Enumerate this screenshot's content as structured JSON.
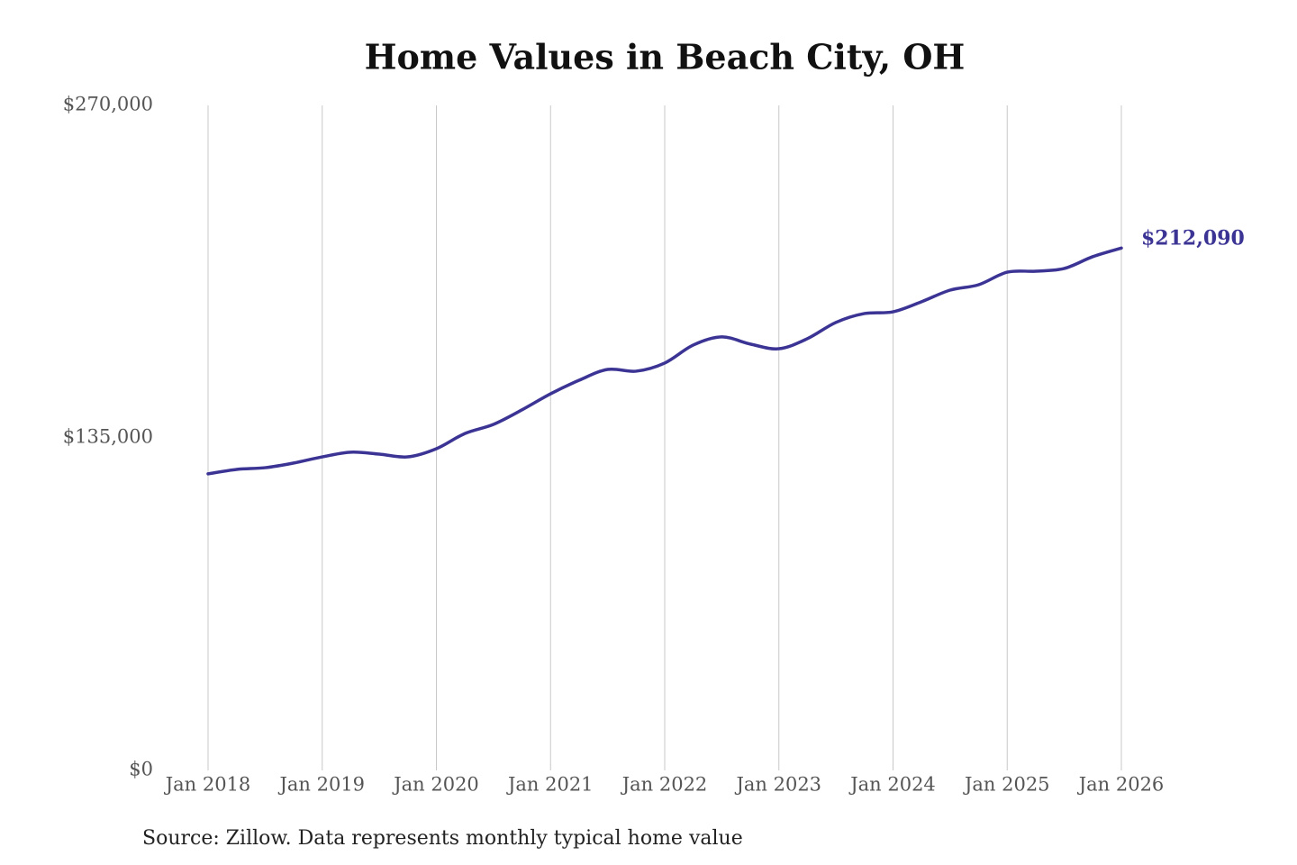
{
  "chart_data": {
    "type": "line",
    "title": "Home Values in Beach City, OH",
    "source": "Source: Zillow. Data represents monthly typical home value",
    "x": [
      2018,
      2018.25,
      2018.5,
      2018.75,
      2019,
      2019.25,
      2019.5,
      2019.75,
      2020,
      2020.25,
      2020.5,
      2020.75,
      2021,
      2021.25,
      2021.5,
      2021.75,
      2022,
      2022.25,
      2022.5,
      2022.75,
      2023,
      2023.25,
      2023.5,
      2023.75,
      2024,
      2024.25,
      2024.5,
      2024.75,
      2025,
      2025.25,
      2025.5,
      2025.75,
      2026
    ],
    "values": [
      120400,
      122200,
      122900,
      124800,
      127300,
      129200,
      128400,
      127300,
      130600,
      136800,
      140500,
      146400,
      152900,
      158400,
      162800,
      162100,
      165400,
      172700,
      176000,
      173100,
      171200,
      175300,
      181900,
      185500,
      186200,
      190300,
      195000,
      197200,
      202300,
      202700,
      203800,
      208600,
      212090
    ],
    "value_labels": [
      null,
      null,
      null,
      null,
      null,
      null,
      null,
      null,
      null,
      null,
      null,
      null,
      null,
      null,
      null,
      null,
      null,
      null,
      null,
      null,
      null,
      null,
      null,
      null,
      null,
      null,
      null,
      null,
      null,
      null,
      null,
      null,
      "$212,090"
    ],
    "color": "#3b3494",
    "xlim": [
      2018,
      2026
    ],
    "xticks": [
      {
        "value": 2018,
        "label": "Jan 2018"
      },
      {
        "value": 2019,
        "label": "Jan 2019"
      },
      {
        "value": 2020,
        "label": "Jan 2020"
      },
      {
        "value": 2021,
        "label": "Jan 2021"
      },
      {
        "value": 2022,
        "label": "Jan 2022"
      },
      {
        "value": 2023,
        "label": "Jan 2023"
      },
      {
        "value": 2024,
        "label": "Jan 2024"
      },
      {
        "value": 2025,
        "label": "Jan 2025"
      },
      {
        "value": 2026,
        "label": "Jan 2026"
      }
    ],
    "ylim": [
      0,
      270000
    ],
    "yticks": [
      {
        "value": 0,
        "label": "$0"
      },
      {
        "value": 135000,
        "label": "$135,000"
      },
      {
        "value": 270000,
        "label": "$270,000"
      }
    ],
    "grid": true
  }
}
